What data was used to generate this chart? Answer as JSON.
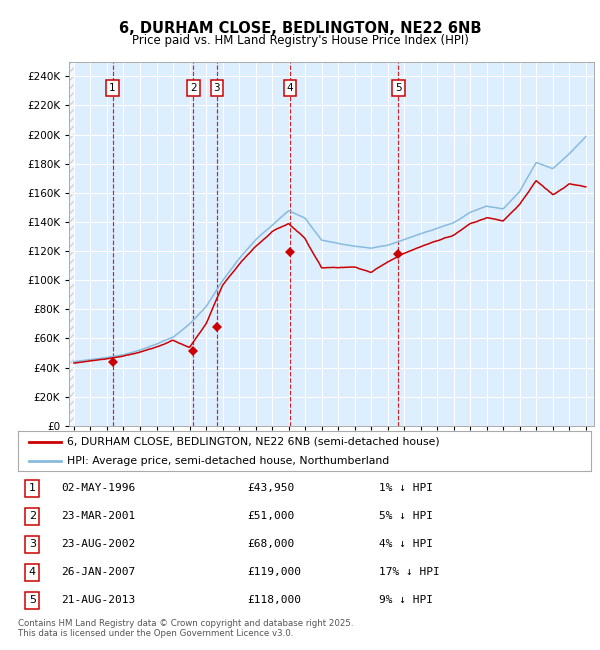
{
  "title": "6, DURHAM CLOSE, BEDLINGTON, NE22 6NB",
  "subtitle": "Price paid vs. HM Land Registry's House Price Index (HPI)",
  "sales": [
    {
      "label": "1",
      "date_num": 1996.34,
      "price": 43950,
      "vline_color": "#cc0000"
    },
    {
      "label": "2",
      "date_num": 2001.23,
      "price": 51000,
      "vline_color": "#cc0000"
    },
    {
      "label": "3",
      "date_num": 2002.65,
      "price": 68000,
      "vline_color": "#cc0000"
    },
    {
      "label": "4",
      "date_num": 2007.07,
      "price": 119000,
      "vline_color": "#cc0000"
    },
    {
      "label": "5",
      "date_num": 2013.65,
      "price": 118000,
      "vline_color": "#cc0000"
    }
  ],
  "table_rows": [
    {
      "num": "1",
      "date": "02-MAY-1996",
      "price": "£43,950",
      "hpi": "1% ↓ HPI"
    },
    {
      "num": "2",
      "date": "23-MAR-2001",
      "price": "£51,000",
      "hpi": "5% ↓ HPI"
    },
    {
      "num": "3",
      "date": "23-AUG-2002",
      "price": "£68,000",
      "hpi": "4% ↓ HPI"
    },
    {
      "num": "4",
      "date": "26-JAN-2007",
      "price": "£119,000",
      "hpi": "17% ↓ HPI"
    },
    {
      "num": "5",
      "date": "21-AUG-2013",
      "price": "£118,000",
      "hpi": "9% ↓ HPI"
    }
  ],
  "legend_line1": "6, DURHAM CLOSE, BEDLINGTON, NE22 6NB (semi-detached house)",
  "legend_line2": "HPI: Average price, semi-detached house, Northumberland",
  "footer": "Contains HM Land Registry data © Crown copyright and database right 2025.\nThis data is licensed under the Open Government Licence v3.0.",
  "red_line_color": "#cc0000",
  "blue_line_color": "#88bbdd",
  "plot_bg_color": "#ddeeff",
  "ylim": [
    0,
    250000
  ],
  "yticks": [
    0,
    20000,
    40000,
    60000,
    80000,
    100000,
    120000,
    140000,
    160000,
    180000,
    200000,
    220000,
    240000
  ],
  "xlim_start": 1993.7,
  "xlim_end": 2025.5,
  "xticks": [
    1994,
    1995,
    1996,
    1997,
    1998,
    1999,
    2000,
    2001,
    2002,
    2003,
    2004,
    2005,
    2006,
    2007,
    2008,
    2009,
    2010,
    2011,
    2012,
    2013,
    2014,
    2015,
    2016,
    2017,
    2018,
    2019,
    2020,
    2021,
    2022,
    2023,
    2024,
    2025
  ],
  "hpi_keypoints_x": [
    1994,
    1995,
    1996,
    1997,
    1998,
    1999,
    2000,
    2001,
    2002,
    2003,
    2004,
    2005,
    2006,
    2007,
    2008,
    2009,
    2010,
    2011,
    2012,
    2013,
    2014,
    2015,
    2016,
    2017,
    2018,
    2019,
    2020,
    2021,
    2022,
    2023,
    2024,
    2025
  ],
  "hpi_keypoints_y": [
    44000,
    45500,
    47000,
    49000,
    52000,
    56000,
    61000,
    70000,
    82000,
    100000,
    115000,
    128000,
    138000,
    148000,
    143000,
    128000,
    126000,
    124000,
    123000,
    125000,
    129000,
    133000,
    137000,
    141000,
    148000,
    152000,
    150000,
    162000,
    182000,
    178000,
    188000,
    200000
  ],
  "pp_keypoints_x": [
    1994,
    1995,
    1996,
    1997,
    1998,
    1999,
    2000,
    2001,
    2002,
    2003,
    2004,
    2005,
    2006,
    2007,
    2008,
    2009,
    2010,
    2011,
    2012,
    2013,
    2014,
    2015,
    2016,
    2017,
    2018,
    2019,
    2020,
    2021,
    2022,
    2023,
    2024,
    2025
  ],
  "pp_keypoints_y": [
    43000,
    44500,
    46000,
    48000,
    51000,
    54000,
    59000,
    54000,
    70000,
    96000,
    110000,
    122000,
    132000,
    138000,
    128000,
    108000,
    108000,
    108000,
    105000,
    112000,
    118000,
    122000,
    126000,
    130000,
    138000,
    142000,
    140000,
    152000,
    168000,
    158000,
    165000,
    163000
  ]
}
